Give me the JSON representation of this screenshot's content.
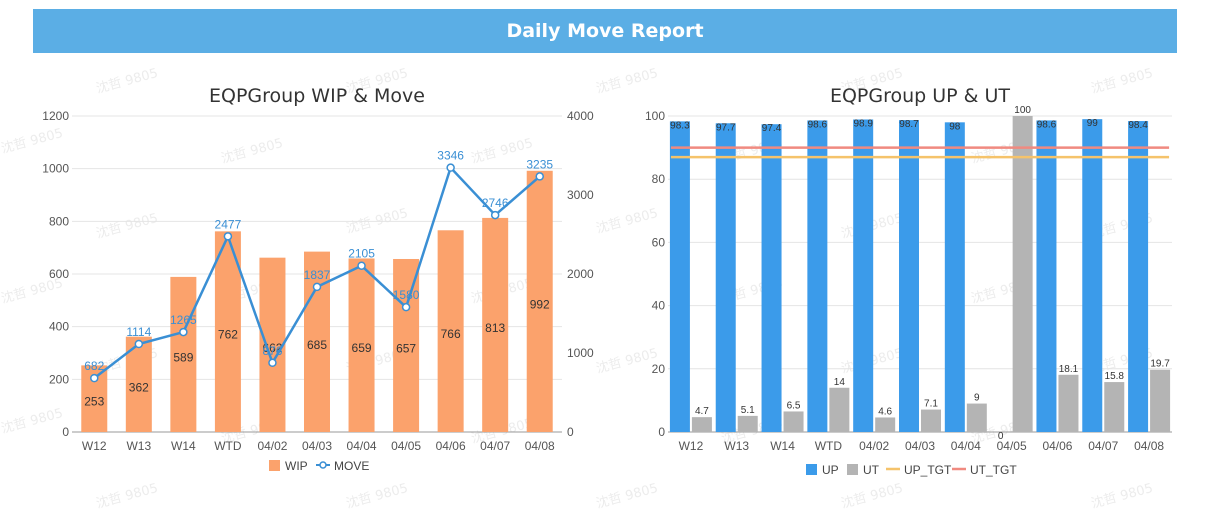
{
  "header": {
    "title": "Daily Move Report"
  },
  "watermark": "沈哲 9805",
  "chart_data": [
    {
      "type": "bar",
      "title": "EQPGroup WIP & Move",
      "categories": [
        "W12",
        "W13",
        "W14",
        "WTD",
        "04/02",
        "04/03",
        "04/04",
        "04/05",
        "04/06",
        "04/07",
        "04/08"
      ],
      "series": [
        {
          "name": "WIP",
          "type": "bar",
          "axis": "left",
          "color": "#fba26c",
          "values": [
            253,
            362,
            589,
            762,
            662,
            685,
            659,
            657,
            766,
            813,
            992
          ],
          "labels": [
            "253",
            "362",
            "589",
            "762",
            "662",
            "685",
            "659",
            "657",
            "766",
            "813",
            "992"
          ]
        },
        {
          "name": "MOVE",
          "type": "line",
          "axis": "right",
          "color": "#3a8fd4",
          "values": [
            682,
            1114,
            1265,
            2477,
            876,
            1837,
            2105,
            1580,
            3346,
            2746,
            3235
          ],
          "labels": [
            "682",
            "1114",
            "1265",
            "2477",
            "876",
            "1837",
            "2105",
            "1580",
            "3346",
            "2746",
            "3235"
          ]
        }
      ],
      "yleft": {
        "min": 0,
        "max": 1200,
        "ticks": [
          "0",
          "200",
          "400",
          "600",
          "800",
          "1000",
          "1200"
        ]
      },
      "yright": {
        "min": 0,
        "max": 4000,
        "ticks": [
          "0",
          "1000",
          "2000",
          "3000",
          "4000"
        ]
      },
      "legend": [
        "WIP",
        "MOVE"
      ],
      "legend_position": "bottom",
      "grid": true
    },
    {
      "type": "bar",
      "title": "EQPGroup UP & UT",
      "categories": [
        "W12",
        "W13",
        "W14",
        "WTD",
        "04/02",
        "04/03",
        "04/04",
        "04/05",
        "04/06",
        "04/07",
        "04/08"
      ],
      "series": [
        {
          "name": "UP",
          "type": "bar",
          "color": "#3b9bea",
          "values": [
            98.3,
            97.7,
            97.4,
            98.6,
            98.9,
            98.7,
            98,
            0,
            98.6,
            99,
            98.4
          ],
          "labels": [
            "98.3",
            "97.7",
            "97.4",
            "98.6",
            "98.9",
            "98.7",
            "98",
            "0",
            "98.6",
            "99",
            "98.4"
          ]
        },
        {
          "name": "UT",
          "type": "bar",
          "color": "#b4b4b4",
          "values": [
            4.7,
            5.1,
            6.5,
            14,
            4.6,
            7.1,
            9,
            100,
            18.1,
            15.8,
            19.7
          ],
          "labels": [
            "4.7",
            "5.1",
            "6.5",
            "14",
            "4.6",
            "7.1",
            "9",
            "100",
            "18.1",
            "15.8",
            "19.7"
          ]
        },
        {
          "name": "UP_TGT",
          "type": "line",
          "color": "#f5c36b",
          "value": 87
        },
        {
          "name": "UT_TGT",
          "type": "line",
          "color": "#f08a80",
          "value": 90
        }
      ],
      "y": {
        "min": 0,
        "max": 100,
        "ticks": [
          "0",
          "20",
          "40",
          "60",
          "80",
          "100"
        ]
      },
      "legend": [
        "UP",
        "UT",
        "UP_TGT",
        "UT_TGT"
      ],
      "legend_position": "bottom",
      "grid": true
    }
  ]
}
